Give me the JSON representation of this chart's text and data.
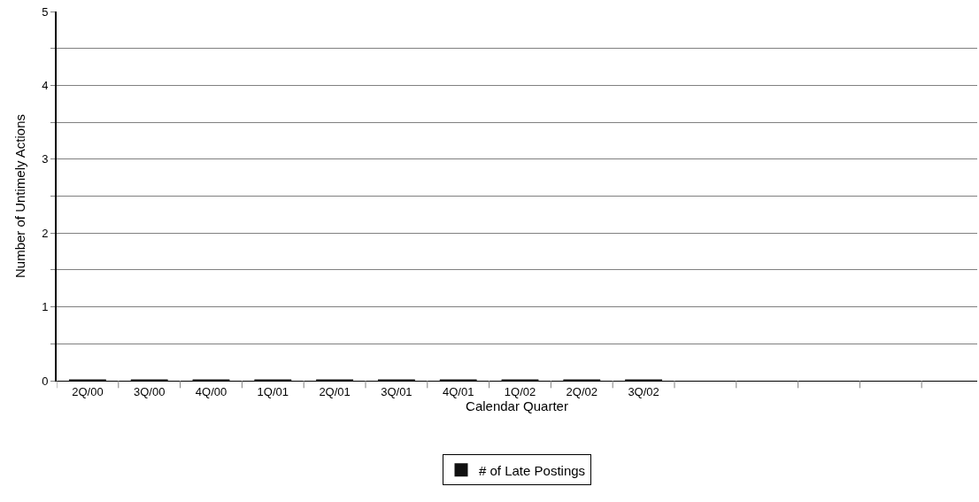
{
  "chart_data": {
    "type": "bar",
    "xlabel": "Calendar Quarter",
    "ylabel": "Number of Untimely Actions",
    "categories": [
      "2Q/00",
      "3Q/00",
      "4Q/00",
      "1Q/01",
      "2Q/01",
      "3Q/01",
      "4Q/01",
      "1Q/02",
      "2Q/02",
      "3Q/02",
      null,
      null,
      null,
      null,
      null
    ],
    "series": [
      {
        "name": "# of Late Postings",
        "color": "#111111",
        "values": [
          0,
          0,
          0,
          0,
          0,
          0,
          0,
          0,
          0,
          0,
          null,
          null,
          null,
          null,
          null
        ]
      }
    ],
    "ylim": [
      0,
      5
    ],
    "yticks": [
      0,
      {
        "value": 0.5,
        "label": null
      },
      1,
      {
        "value": 1.5,
        "label": null
      },
      2,
      {
        "value": 2.5,
        "label": null
      },
      3,
      {
        "value": 3.5,
        "label": null
      },
      4,
      {
        "value": 4.5,
        "label": null
      },
      5
    ],
    "grid": "y",
    "legend": "bottom"
  }
}
